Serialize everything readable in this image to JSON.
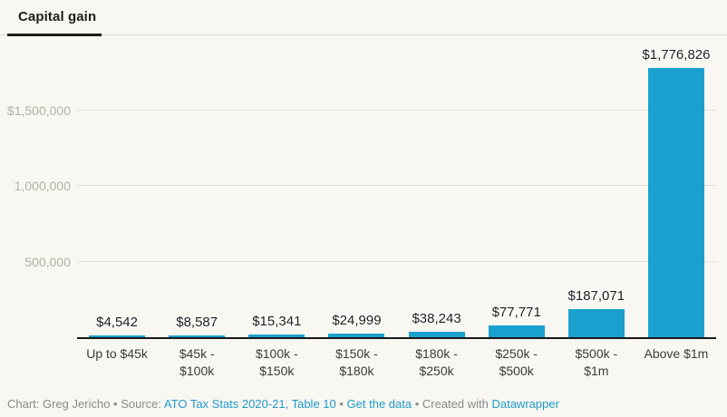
{
  "header": {
    "title": "Capital gain"
  },
  "colors": {
    "background": "#f9f7f1",
    "bar": "#1aa0ce",
    "link": "#1f9acd",
    "gridline": "#e6e1d9",
    "axis_line": "#1a1a1a",
    "value_label": "#1d1d1d",
    "x_label": "#3b3b3b",
    "y_label": "#b3afa8",
    "footer_text": "#8a8a8a"
  },
  "chart_data": {
    "type": "bar",
    "title": "Capital gain",
    "xlabel": "",
    "ylabel": "",
    "categories": [
      "Up to $45k",
      "$45k - $100k",
      "$100k - $150k",
      "$150k - $180k",
      "$180k - $250k",
      "$250k - $500k",
      "$500k - $1m",
      "Above $1m"
    ],
    "category_label_lines": [
      [
        "Up to $45k"
      ],
      [
        "$45k -",
        "$100k"
      ],
      [
        "$100k -",
        "$150k"
      ],
      [
        "$150k -",
        "$180k"
      ],
      [
        "$180k -",
        "$250k"
      ],
      [
        "$250k -",
        "$500k"
      ],
      [
        "$500k -",
        "$1m"
      ],
      [
        "Above $1m"
      ]
    ],
    "values": [
      4542,
      8587,
      15341,
      24999,
      38243,
      77771,
      187071,
      1776826
    ],
    "value_labels": [
      "$4,542",
      "$8,587",
      "$15,341",
      "$24,999",
      "$38,243",
      "$77,771",
      "$187,071",
      "$1,776,826"
    ],
    "y_axis": {
      "ticks": [
        500000,
        1000000,
        1500000
      ],
      "tick_labels": [
        "500,000",
        "1,000,000",
        "$1,500,000"
      ],
      "range": [
        0,
        1870000
      ],
      "grid": true
    },
    "legend": null
  },
  "footer": {
    "parts": [
      {
        "text": "Chart: Greg Jericho",
        "type": "text"
      },
      {
        "text": " • ",
        "type": "sep"
      },
      {
        "text": "Source: ",
        "type": "text"
      },
      {
        "text": "ATO Tax Stats 2020-21, Table 10",
        "type": "link"
      },
      {
        "text": " • ",
        "type": "sep"
      },
      {
        "text": "Get the data",
        "type": "link"
      },
      {
        "text": " • ",
        "type": "sep"
      },
      {
        "text": "Created with ",
        "type": "text"
      },
      {
        "text": "Datawrapper",
        "type": "link"
      }
    ]
  }
}
